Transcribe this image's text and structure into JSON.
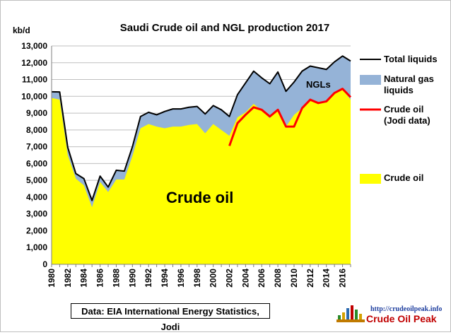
{
  "chart_data": {
    "type": "area",
    "title": "Saudi Crude oil and NGL production 2017",
    "ylabel": "kb/d",
    "xlabel": "",
    "xlim": [
      1980,
      2017
    ],
    "ylim": [
      0,
      13000
    ],
    "yticks": [
      "0",
      "1,000",
      "2,000",
      "3,000",
      "4,000",
      "5,000",
      "6,000",
      "7,000",
      "8,000",
      "9,000",
      "10,000",
      "11,000",
      "12,000",
      "13,000"
    ],
    "xticks": [
      "1980",
      "1982",
      "1984",
      "1986",
      "1988",
      "1990",
      "1992",
      "1994",
      "1996",
      "1998",
      "2000",
      "2002",
      "2004",
      "2006",
      "2008",
      "2010",
      "2012",
      "2014",
      "2016"
    ],
    "x": [
      1980,
      1981,
      1982,
      1983,
      1984,
      1985,
      1986,
      1987,
      1988,
      1989,
      1990,
      1991,
      1992,
      1993,
      1994,
      1995,
      1996,
      1997,
      1998,
      1999,
      2000,
      2001,
      2002,
      2003,
      2004,
      2005,
      2006,
      2007,
      2008,
      2009,
      2010,
      2011,
      2012,
      2013,
      2014,
      2015,
      2016,
      2017
    ],
    "series": [
      {
        "name": "Total liquids",
        "color": "#000000",
        "style": "line",
        "values": [
          10270,
          10260,
          6960,
          5400,
          5100,
          3800,
          5250,
          4600,
          5600,
          5550,
          7000,
          8800,
          9050,
          8900,
          9100,
          9250,
          9250,
          9350,
          9400,
          8950,
          9450,
          9200,
          8800,
          10100,
          10800,
          11500,
          11100,
          10750,
          11450,
          10300,
          10850,
          11500,
          11800,
          11700,
          11600,
          12050,
          12400,
          12100
        ]
      },
      {
        "name": "Natural gas liquids",
        "color": "#95b3d7",
        "style": "area"
      },
      {
        "name": "Crude oil (Jodi data)",
        "color": "#ff0000",
        "style": "line",
        "x": [
          2002,
          2003,
          2004,
          2005,
          2006,
          2007,
          2008,
          2009,
          2010,
          2011,
          2012,
          2013,
          2014,
          2015,
          2016,
          2017
        ],
        "values": [
          7050,
          8400,
          8900,
          9350,
          9200,
          8800,
          9200,
          8200,
          8200,
          9300,
          9800,
          9600,
          9700,
          10200,
          10450,
          9950
        ]
      },
      {
        "name": "Crude oil",
        "color": "#ffff00",
        "style": "area",
        "values": [
          9900,
          9800,
          6500,
          5100,
          4700,
          3400,
          4900,
          4300,
          5050,
          5050,
          6450,
          8100,
          8350,
          8200,
          8100,
          8200,
          8200,
          8300,
          8350,
          7800,
          8350,
          8000,
          7650,
          8750,
          9050,
          9550,
          9150,
          8700,
          9250,
          8200,
          8900,
          9300,
          9800,
          9650,
          9750,
          10150,
          10400,
          9800
        ]
      }
    ],
    "annotations": [
      "NGLs",
      "Crude oil"
    ],
    "legend_position": "right",
    "grid": true
  },
  "source_label": "Data: EIA International Energy Statistics, Jodi",
  "logo": {
    "url": "http://crudeoilpeak.info",
    "name": "Crude Oil Peak"
  }
}
